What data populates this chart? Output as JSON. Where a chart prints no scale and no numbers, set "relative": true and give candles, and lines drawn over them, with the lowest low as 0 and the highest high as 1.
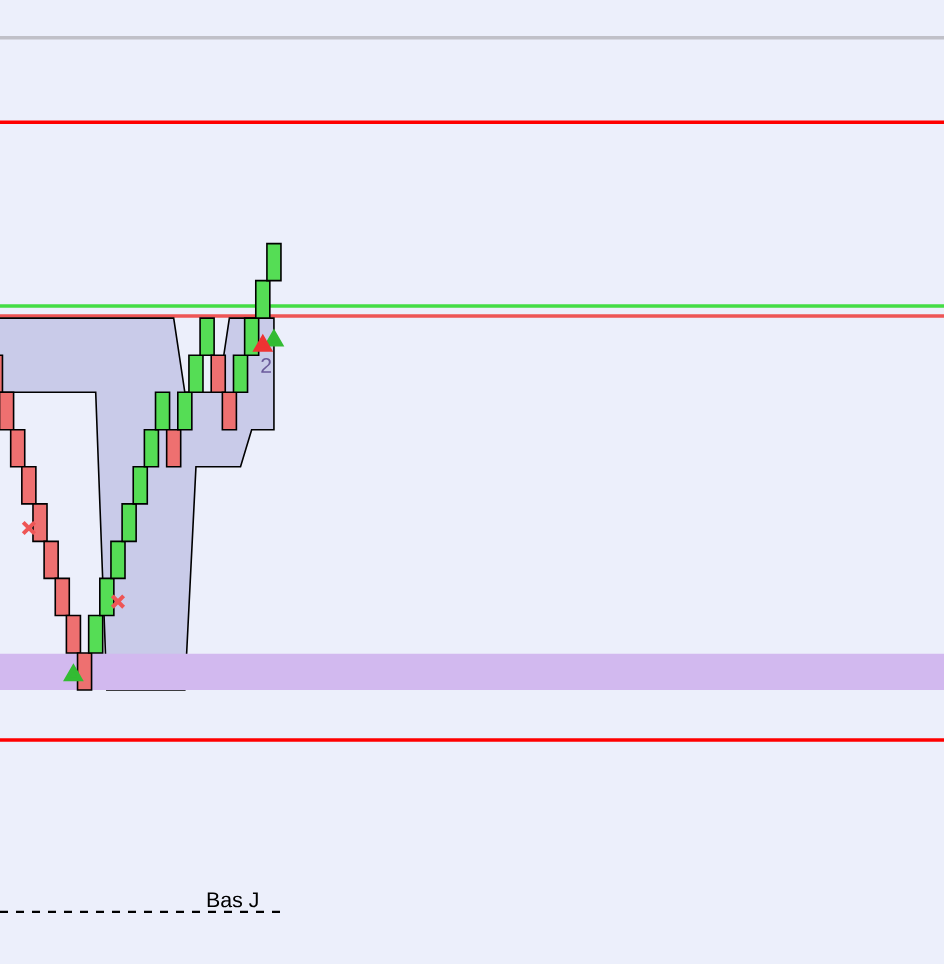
{
  "chart_data": {
    "type": "candlestick",
    "relative": true,
    "categories": [
      null,
      null,
      null,
      null,
      null,
      null,
      null,
      null,
      null,
      null,
      null,
      null,
      null,
      null,
      null,
      null,
      null,
      null,
      null,
      null,
      null,
      null,
      null,
      null,
      null,
      null
    ],
    "ohlc": [
      [
        0.75,
        0.75,
        0.667,
        0.667
      ],
      [
        0.667,
        0.667,
        0.583,
        0.583
      ],
      [
        0.583,
        0.583,
        0.5,
        0.5
      ],
      [
        0.5,
        0.5,
        0.417,
        0.417
      ],
      [
        0.417,
        0.417,
        0.333,
        0.333
      ],
      [
        0.333,
        0.333,
        0.25,
        0.25
      ],
      [
        0.25,
        0.25,
        0.167,
        0.167
      ],
      [
        0.167,
        0.167,
        0.083,
        0.083
      ],
      [
        0.083,
        0.083,
        0,
        0
      ],
      [
        0.083,
        0.167,
        0.083,
        0.167
      ],
      [
        0.167,
        0.25,
        0.167,
        0.25
      ],
      [
        0.25,
        0.333,
        0.25,
        0.333
      ],
      [
        0.333,
        0.417,
        0.333,
        0.417
      ],
      [
        0.417,
        0.5,
        0.417,
        0.5
      ],
      [
        0.5,
        0.583,
        0.5,
        0.583
      ],
      [
        0.583,
        0.667,
        0.583,
        0.667
      ],
      [
        0.583,
        0.583,
        0.5,
        0.5
      ],
      [
        0.583,
        0.667,
        0.583,
        0.667
      ],
      [
        0.667,
        0.75,
        0.667,
        0.75
      ],
      [
        0.75,
        0.833,
        0.75,
        0.833
      ],
      [
        0.75,
        0.75,
        0.667,
        0.667
      ],
      [
        0.667,
        0.667,
        0.583,
        0.583
      ],
      [
        0.667,
        0.75,
        0.667,
        0.75
      ],
      [
        0.75,
        0.833,
        0.75,
        0.833
      ],
      [
        0.833,
        0.917,
        0.833,
        0.917
      ],
      [
        0.917,
        1,
        0.917,
        1
      ]
    ],
    "colors": [
      "#ee7070",
      "#ee7070",
      "#ee7070",
      "#ee7070",
      "#ee7070",
      "#ee7070",
      "#ee7070",
      "#ee7070",
      "#ee7070",
      "#55dd55",
      "#55dd55",
      "#55dd55",
      "#55dd55",
      "#55dd55",
      "#55dd55",
      "#55dd55",
      "#ee7070",
      "#55dd55",
      "#55dd55",
      "#55dd55",
      "#ee7070",
      "#ee7070",
      "#55dd55",
      "#55dd55",
      "#55dd55",
      "#55dd55"
    ],
    "series": [
      {
        "type": "area",
        "color": "#c9cbe9",
        "values": [
          null,
          null,
          null,
          null,
          null,
          null,
          null,
          null,
          null,
          null,
          null,
          null,
          null,
          null,
          null,
          null,
          null,
          null,
          null,
          null,
          null,
          null,
          null,
          null,
          null,
          null
        ],
        "upper": [
          0.833,
          0.833,
          0.833,
          0.833,
          0.833,
          0.833,
          0.833,
          0.833,
          0.833,
          0.833,
          0.833,
          0.833,
          0.833,
          0.833,
          0.833,
          0.833,
          0.833,
          0.667,
          0.667,
          0.667,
          0.667,
          0.833,
          0.833,
          0.833,
          0.833,
          0.833
        ],
        "lower": [
          0.667,
          0.667,
          0.667,
          0.667,
          0.667,
          0.667,
          0.667,
          0.667,
          0.667,
          0.667,
          0,
          0,
          0,
          0,
          0,
          0,
          0,
          0,
          0.5,
          0.5,
          0.5,
          0.5,
          0.5,
          0.583,
          0.583,
          0.583
        ]
      },
      {
        "type": "scatter",
        "marker": "triangle",
        "color": "#33bb33",
        "values": [
          null,
          null,
          null,
          null,
          null,
          null,
          null,
          0.033,
          null,
          null,
          null,
          null,
          null,
          null,
          null,
          null,
          null,
          null,
          null,
          null,
          null,
          null,
          null,
          null,
          null,
          0.783
        ]
      },
      {
        "type": "scatter",
        "marker": "cross",
        "color": "#ee5555",
        "values": [
          null,
          null,
          null,
          0.363,
          null,
          null,
          null,
          null,
          null,
          null,
          null,
          0.198,
          null,
          null,
          null,
          null,
          null,
          null,
          null,
          null,
          null,
          null,
          null,
          null,
          null,
          null
        ]
      },
      {
        "type": "scatter",
        "marker": "triangle",
        "color": "#ee3333",
        "values": [
          null,
          null,
          null,
          null,
          null,
          null,
          null,
          null,
          null,
          null,
          null,
          null,
          null,
          null,
          null,
          null,
          null,
          null,
          null,
          null,
          null,
          null,
          null,
          null,
          0.771,
          null
        ]
      }
    ],
    "bands": [
      {
        "axis": "y",
        "from": 0,
        "to": 0.081,
        "color": "#d2b9ef"
      }
    ],
    "ref_lines": [
      {
        "axis": "y",
        "value": 1.461,
        "color": "#c0c0c8"
      },
      {
        "axis": "y",
        "value": 1.272,
        "color": "#ff0000"
      },
      {
        "axis": "y",
        "value": 0.86,
        "color": "#44dd44"
      },
      {
        "axis": "y",
        "value": 0.838,
        "color": "#ee5555"
      },
      {
        "axis": "y",
        "value": -0.112,
        "color": "#ff0000"
      },
      {
        "axis": "y",
        "value": -0.497,
        "color": "#000000",
        "line_style": "dashed",
        "label": "Bas J"
      }
    ],
    "annotations": [
      "2"
    ]
  }
}
